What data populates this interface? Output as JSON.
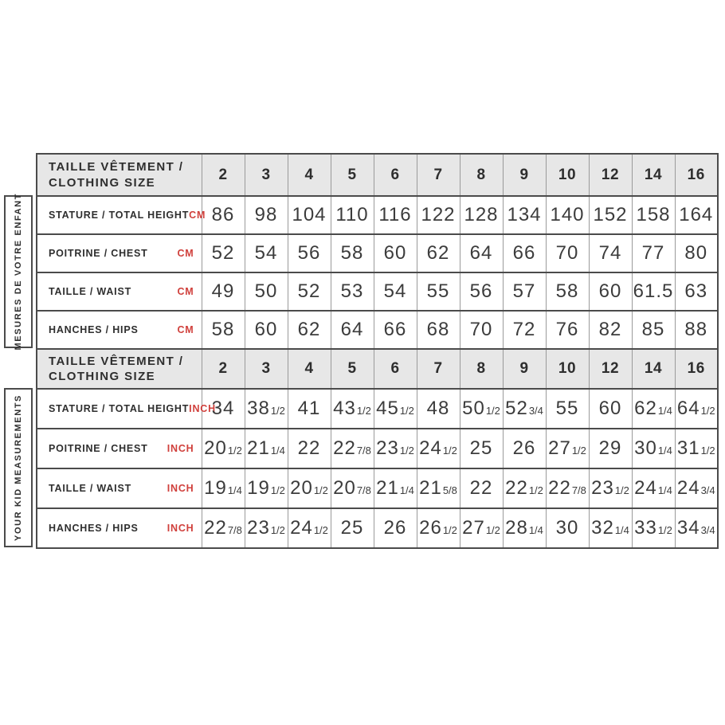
{
  "colors": {
    "accent_red": "#d0403c",
    "header_bg": "#e7e7e7",
    "border_dark": "#4b4b4b",
    "border_light": "#9a9a9a",
    "text_dark": "#2e2e2e"
  },
  "table": {
    "header_label_lines": [
      "TAILLE VÊTEMENT /",
      "CLOTHING SIZE"
    ],
    "sizes": [
      "2",
      "3",
      "4",
      "5",
      "6",
      "7",
      "8",
      "9",
      "10",
      "12",
      "14",
      "16"
    ],
    "cm_section": {
      "side_label": "MESURES DE VOTRE ENFANT",
      "unit": "CM",
      "rows": [
        {
          "label": "STATURE / TOTAL HEIGHT",
          "values": [
            "86",
            "98",
            "104",
            "110",
            "116",
            "122",
            "128",
            "134",
            "140",
            "152",
            "158",
            "164"
          ]
        },
        {
          "label": "POITRINE / CHEST",
          "values": [
            "52",
            "54",
            "56",
            "58",
            "60",
            "62",
            "64",
            "66",
            "70",
            "74",
            "77",
            "80"
          ]
        },
        {
          "label": "TAILLE / WAIST",
          "values": [
            "49",
            "50",
            "52",
            "53",
            "54",
            "55",
            "56",
            "57",
            "58",
            "60",
            "61.5",
            "63"
          ]
        },
        {
          "label": "HANCHES / HIPS",
          "values": [
            "58",
            "60",
            "62",
            "64",
            "66",
            "68",
            "70",
            "72",
            "76",
            "82",
            "85",
            "88"
          ]
        }
      ]
    },
    "inch_section": {
      "side_label": "YOUR KID MEASUREMENTS",
      "unit": "INCH",
      "rows": [
        {
          "label": "STATURE / TOTAL HEIGHT",
          "values": [
            "34",
            "38 1/2",
            "41",
            "43 1/2",
            "45 1/2",
            "48",
            "50 1/2",
            "52 3/4",
            "55",
            "60",
            "62 1/4",
            "64 1/2"
          ]
        },
        {
          "label": "POITRINE / CHEST",
          "values": [
            "20 1/2",
            "21 1/4",
            "22",
            "22 7/8",
            "23 1/2",
            "24 1/2",
            "25",
            "26",
            "27 1/2",
            "29",
            "30 1/4",
            "31 1/2"
          ]
        },
        {
          "label": "TAILLE / WAIST",
          "values": [
            "19 1/4",
            "19 1/2",
            "20 1/2",
            "20 7/8",
            "21 1/4",
            "21 5/8",
            "22",
            "22 1/2",
            "22 7/8",
            "23 1/2",
            "24 1/4",
            "24 3/4"
          ]
        },
        {
          "label": "HANCHES / HIPS",
          "values": [
            "22 7/8",
            "23 1/2",
            "24 1/2",
            "25",
            "26",
            "26 1/2",
            "27 1/2",
            "28 1/4",
            "30",
            "32 1/4",
            "33 1/2",
            "34 3/4"
          ]
        }
      ]
    }
  }
}
